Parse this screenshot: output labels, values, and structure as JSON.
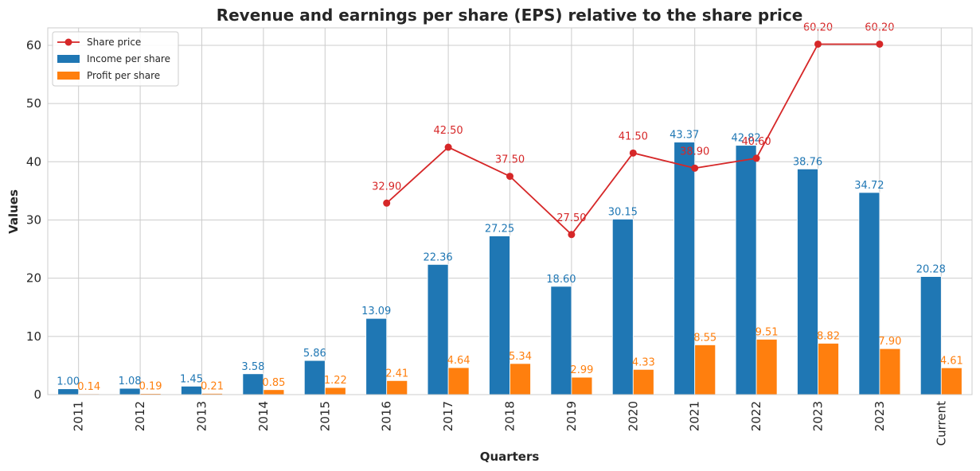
{
  "chart_data": {
    "type": "bar",
    "title": "Revenue and earnings per share (EPS) relative to the share price",
    "xlabel": "Quarters",
    "ylabel": "Values",
    "ylim": [
      0,
      63
    ],
    "yticks": [
      0,
      10,
      20,
      30,
      40,
      50,
      60
    ],
    "grid": true,
    "legend_position": "top-left",
    "categories": [
      "2011",
      "2012",
      "2013",
      "2014",
      "2015",
      "2016",
      "2017",
      "2018",
      "2019",
      "2020",
      "2021",
      "2022",
      "2023",
      "2023",
      "Current"
    ],
    "series": [
      {
        "name": "Income per share",
        "kind": "bar",
        "color": "#1f77b4",
        "values": [
          1.0,
          1.08,
          1.45,
          3.58,
          5.86,
          13.09,
          22.36,
          27.25,
          18.6,
          30.15,
          43.37,
          42.82,
          38.76,
          34.72,
          20.28
        ],
        "labels": [
          "1.00",
          "1.08",
          "1.45",
          "3.58",
          "5.86",
          "13.09",
          "22.36",
          "27.25",
          "18.60",
          "30.15",
          "43.37",
          "42.82",
          "38.76",
          "34.72",
          "20.28"
        ]
      },
      {
        "name": "Profit per share",
        "kind": "bar",
        "color": "#ff7f0e",
        "values": [
          0.14,
          0.19,
          0.21,
          0.85,
          1.22,
          2.41,
          4.64,
          5.34,
          2.99,
          4.33,
          8.55,
          9.51,
          8.82,
          7.9,
          4.61
        ],
        "labels": [
          "0.14",
          "0.19",
          "0.21",
          "0.85",
          "1.22",
          "2.41",
          "4.64",
          "5.34",
          "2.99",
          "4.33",
          "8.55",
          "9.51",
          "8.82",
          "7.90",
          "4.61"
        ]
      },
      {
        "name": "Share price",
        "kind": "line",
        "color": "#d62728",
        "values": [
          null,
          null,
          null,
          null,
          null,
          32.9,
          42.5,
          37.5,
          27.5,
          41.5,
          38.9,
          40.6,
          60.2,
          60.2,
          null
        ],
        "labels": [
          "",
          "",
          "",
          "",
          "",
          "32.90",
          "42.50",
          "37.50",
          "27.50",
          "41.50",
          "38.90",
          "40.60",
          "60.20",
          "60.20",
          ""
        ]
      }
    ],
    "legend_order": [
      "Share price",
      "Income per share",
      "Profit per share"
    ]
  }
}
